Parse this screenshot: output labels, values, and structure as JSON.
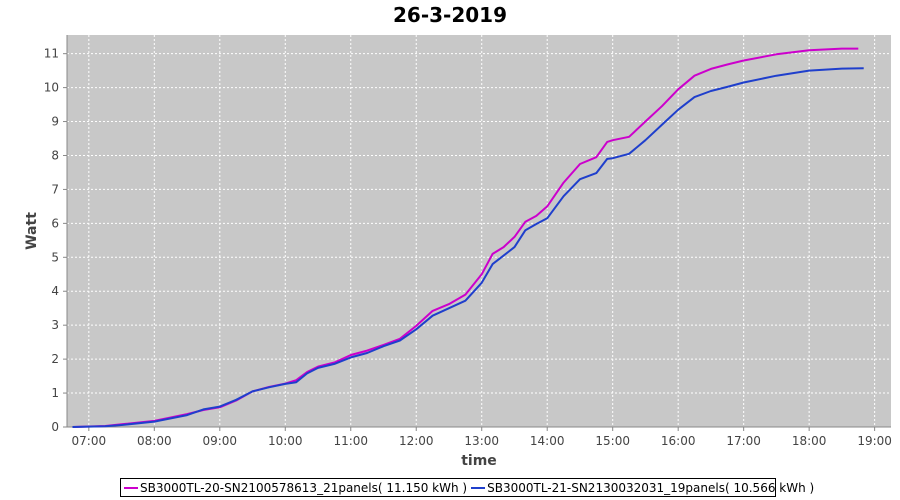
{
  "chart_data": {
    "type": "line",
    "title": "26-3-2019",
    "xlabel": "time",
    "ylabel": "Watt",
    "x_tick_labels": [
      "07:00",
      "08:00",
      "09:00",
      "10:00",
      "11:00",
      "12:00",
      "13:00",
      "14:00",
      "15:00",
      "16:00",
      "17:00",
      "18:00",
      "19:00"
    ],
    "y_ticks": [
      0,
      1,
      2,
      3,
      4,
      5,
      6,
      7,
      8,
      9,
      10,
      11
    ],
    "xlim": [
      "06:40",
      "19:15"
    ],
    "ylim": [
      0,
      11.55
    ],
    "grid": true,
    "legend_position": "bottom",
    "colors": {
      "plot_background": "#c8c8c8",
      "gridline": "#ffffff"
    },
    "series": [
      {
        "name": "SB3000TL-20-SN2100578613_21panels( 11.150 kWh )",
        "color": "#cc00cc",
        "points": [
          [
            "06:45",
            0.0
          ],
          [
            "07:15",
            0.03
          ],
          [
            "07:30",
            0.08
          ],
          [
            "08:00",
            0.18
          ],
          [
            "08:30",
            0.38
          ],
          [
            "08:45",
            0.5
          ],
          [
            "09:00",
            0.58
          ],
          [
            "09:15",
            0.78
          ],
          [
            "09:30",
            1.05
          ],
          [
            "09:45",
            1.18
          ],
          [
            "10:00",
            1.28
          ],
          [
            "10:10",
            1.38
          ],
          [
            "10:20",
            1.62
          ],
          [
            "10:30",
            1.78
          ],
          [
            "10:45",
            1.9
          ],
          [
            "11:00",
            2.12
          ],
          [
            "11:15",
            2.25
          ],
          [
            "11:30",
            2.42
          ],
          [
            "11:45",
            2.6
          ],
          [
            "12:00",
            2.98
          ],
          [
            "12:15",
            3.42
          ],
          [
            "12:30",
            3.62
          ],
          [
            "12:45",
            3.9
          ],
          [
            "13:00",
            4.5
          ],
          [
            "13:10",
            5.1
          ],
          [
            "13:20",
            5.3
          ],
          [
            "13:30",
            5.6
          ],
          [
            "13:40",
            6.05
          ],
          [
            "13:50",
            6.22
          ],
          [
            "14:00",
            6.5
          ],
          [
            "14:15",
            7.2
          ],
          [
            "14:30",
            7.75
          ],
          [
            "14:45",
            7.95
          ],
          [
            "14:55",
            8.4
          ],
          [
            "15:00",
            8.45
          ],
          [
            "15:15",
            8.55
          ],
          [
            "15:30",
            9.0
          ],
          [
            "15:45",
            9.45
          ],
          [
            "16:00",
            9.95
          ],
          [
            "16:15",
            10.35
          ],
          [
            "16:30",
            10.55
          ],
          [
            "16:45",
            10.68
          ],
          [
            "17:00",
            10.8
          ],
          [
            "17:30",
            10.98
          ],
          [
            "18:00",
            11.1
          ],
          [
            "18:30",
            11.15
          ],
          [
            "18:45",
            11.15
          ]
        ]
      },
      {
        "name": "SB3000TL-21-SN2130032031_19panels( 10.566 kWh )",
        "color": "#1f3fcc",
        "points": [
          [
            "06:45",
            0.0
          ],
          [
            "07:15",
            0.02
          ],
          [
            "07:30",
            0.06
          ],
          [
            "08:00",
            0.16
          ],
          [
            "08:30",
            0.35
          ],
          [
            "08:45",
            0.52
          ],
          [
            "09:00",
            0.6
          ],
          [
            "09:15",
            0.8
          ],
          [
            "09:30",
            1.05
          ],
          [
            "09:45",
            1.17
          ],
          [
            "10:00",
            1.27
          ],
          [
            "10:10",
            1.32
          ],
          [
            "10:20",
            1.58
          ],
          [
            "10:30",
            1.74
          ],
          [
            "10:45",
            1.86
          ],
          [
            "11:00",
            2.05
          ],
          [
            "11:15",
            2.18
          ],
          [
            "11:30",
            2.38
          ],
          [
            "11:45",
            2.55
          ],
          [
            "12:00",
            2.88
          ],
          [
            "12:15",
            3.28
          ],
          [
            "12:30",
            3.5
          ],
          [
            "12:45",
            3.72
          ],
          [
            "13:00",
            4.25
          ],
          [
            "13:10",
            4.8
          ],
          [
            "13:20",
            5.05
          ],
          [
            "13:30",
            5.3
          ],
          [
            "13:40",
            5.8
          ],
          [
            "13:50",
            5.98
          ],
          [
            "14:00",
            6.15
          ],
          [
            "14:15",
            6.8
          ],
          [
            "14:30",
            7.3
          ],
          [
            "14:45",
            7.48
          ],
          [
            "14:55",
            7.9
          ],
          [
            "15:00",
            7.92
          ],
          [
            "15:15",
            8.05
          ],
          [
            "15:30",
            8.45
          ],
          [
            "15:45",
            8.9
          ],
          [
            "16:00",
            9.35
          ],
          [
            "16:15",
            9.72
          ],
          [
            "16:30",
            9.9
          ],
          [
            "16:45",
            10.02
          ],
          [
            "17:00",
            10.15
          ],
          [
            "17:30",
            10.35
          ],
          [
            "18:00",
            10.5
          ],
          [
            "18:30",
            10.56
          ],
          [
            "18:50",
            10.57
          ]
        ]
      }
    ]
  }
}
